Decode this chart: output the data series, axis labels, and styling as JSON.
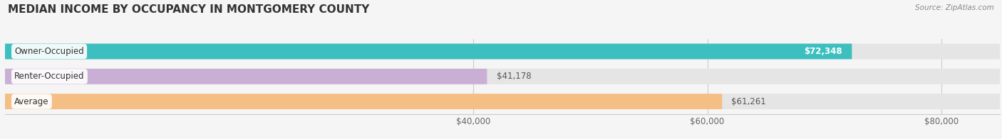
{
  "title": "MEDIAN INCOME BY OCCUPANCY IN MONTGOMERY COUNTY",
  "source": "Source: ZipAtlas.com",
  "categories": [
    "Owner-Occupied",
    "Renter-Occupied",
    "Average"
  ],
  "values": [
    72348,
    41178,
    61261
  ],
  "bar_colors": [
    "#3dbfbf",
    "#c9afd4",
    "#f5be84"
  ],
  "value_label_colors": [
    "#ffffff",
    "#555555",
    "#555555"
  ],
  "label_inside": [
    true,
    false,
    false
  ],
  "value_labels": [
    "$72,348",
    "$41,178",
    "$61,261"
  ],
  "xlim": [
    0,
    85000
  ],
  "xticks": [
    40000,
    60000,
    80000
  ],
  "xticklabels": [
    "$40,000",
    "$60,000",
    "$80,000"
  ],
  "background_color": "#f5f5f5",
  "bar_bg_color": "#e5e5e5",
  "title_fontsize": 11,
  "bar_height": 0.62,
  "bar_gap": 0.18,
  "figsize": [
    14.06,
    1.96
  ],
  "dpi": 100
}
